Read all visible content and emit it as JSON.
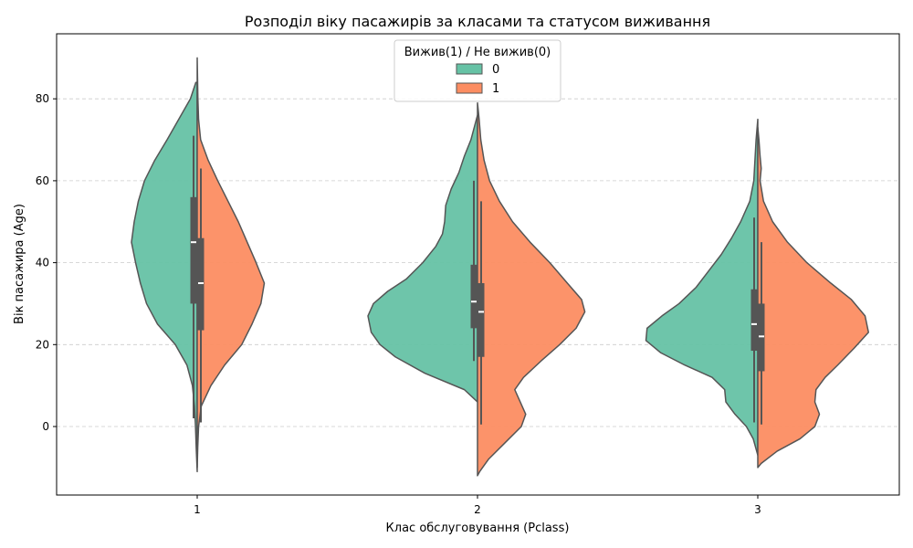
{
  "chart_data": {
    "type": "violin",
    "title": "Розподіл віку пасажирів за класами та статусом виживання",
    "xlabel": "Клас обслуговування (Pclass)",
    "ylabel": "Вік пасажира (Age)",
    "categories": [
      "1",
      "2",
      "3"
    ],
    "y_ticks": [
      "0",
      "20",
      "40",
      "60",
      "80"
    ],
    "ylim": [
      -16,
      96
    ],
    "grid": "horizontal dashed",
    "legend": {
      "title": "Вижив(1) / Не вижив(0)",
      "placement": "top-center",
      "entries": [
        "0",
        "1"
      ]
    },
    "colors": {
      "0": "#66c2a5",
      "1": "#fc8d62",
      "outline": "#555555",
      "box": "#555555"
    },
    "series": [
      {
        "name": "0",
        "side": "left",
        "categories": [
          {
            "profile": [
              [
                -11,
                0.0
              ],
              [
                -5,
                0.015
              ],
              [
                0,
                0.025
              ],
              [
                5,
                0.04
              ],
              [
                10,
                0.07
              ],
              [
                15,
                0.15
              ],
              [
                20,
                0.32
              ],
              [
                25,
                0.58
              ],
              [
                30,
                0.74
              ],
              [
                35,
                0.83
              ],
              [
                40,
                0.9
              ],
              [
                45,
                0.96
              ],
              [
                50,
                0.92
              ],
              [
                55,
                0.86
              ],
              [
                60,
                0.77
              ],
              [
                65,
                0.62
              ],
              [
                70,
                0.44
              ],
              [
                75,
                0.27
              ],
              [
                80,
                0.1
              ],
              [
                84,
                0.02
              ]
            ],
            "box": {
              "q1": 30,
              "median": 45,
              "q3": 56,
              "whisker_low": 2,
              "whisker_high": 71
            }
          },
          {
            "profile": [
              [
                6,
                0.0
              ],
              [
                9,
                0.12
              ],
              [
                13,
                0.48
              ],
              [
                17,
                0.75
              ],
              [
                20,
                0.89
              ],
              [
                23,
                0.97
              ],
              [
                27,
                1.0
              ],
              [
                30,
                0.95
              ],
              [
                33,
                0.82
              ],
              [
                36,
                0.65
              ],
              [
                40,
                0.5
              ],
              [
                44,
                0.38
              ],
              [
                47,
                0.32
              ],
              [
                50,
                0.3
              ],
              [
                54,
                0.29
              ],
              [
                58,
                0.24
              ],
              [
                62,
                0.17
              ],
              [
                66,
                0.12
              ],
              [
                70,
                0.06
              ],
              [
                74,
                0.02
              ],
              [
                76,
                0.0
              ]
            ],
            "box": {
              "q1": 24,
              "median": 30.5,
              "q3": 39.5,
              "whisker_low": 16,
              "whisker_high": 60
            }
          },
          {
            "profile": [
              [
                -7,
                0.0
              ],
              [
                -3,
                0.04
              ],
              [
                0,
                0.1
              ],
              [
                3,
                0.2
              ],
              [
                6,
                0.28
              ],
              [
                9,
                0.29
              ],
              [
                12,
                0.4
              ],
              [
                15,
                0.64
              ],
              [
                18,
                0.85
              ],
              [
                21,
                0.98
              ],
              [
                24,
                0.97
              ],
              [
                27,
                0.84
              ],
              [
                30,
                0.69
              ],
              [
                34,
                0.54
              ],
              [
                38,
                0.43
              ],
              [
                42,
                0.32
              ],
              [
                46,
                0.23
              ],
              [
                50,
                0.15
              ],
              [
                55,
                0.07
              ],
              [
                60,
                0.035
              ],
              [
                65,
                0.025
              ],
              [
                70,
                0.015
              ],
              [
                75,
                0.0
              ]
            ],
            "box": {
              "q1": 18.5,
              "median": 25,
              "q3": 33.5,
              "whisker_low": 1,
              "whisker_high": 51
            }
          }
        ]
      },
      {
        "name": "1",
        "side": "right",
        "categories": [
          {
            "profile": [
              [
                -10,
                0.0
              ],
              [
                -5,
                0.008
              ],
              [
                0,
                0.02
              ],
              [
                5,
                0.06
              ],
              [
                10,
                0.2
              ],
              [
                15,
                0.4
              ],
              [
                20,
                0.65
              ],
              [
                25,
                0.8
              ],
              [
                30,
                0.93
              ],
              [
                35,
                0.98
              ],
              [
                40,
                0.86
              ],
              [
                45,
                0.73
              ],
              [
                50,
                0.6
              ],
              [
                55,
                0.45
              ],
              [
                60,
                0.3
              ],
              [
                65,
                0.16
              ],
              [
                70,
                0.05
              ],
              [
                75,
                0.02
              ],
              [
                80,
                0.01
              ],
              [
                85,
                0.005
              ],
              [
                90,
                0.0
              ]
            ],
            "box": {
              "q1": 23.5,
              "median": 35,
              "q3": 46,
              "whisker_low": 1,
              "whisker_high": 63
            }
          },
          {
            "profile": [
              [
                -12,
                0.0
              ],
              [
                -11,
                0.02
              ],
              [
                -8,
                0.1
              ],
              [
                -4,
                0.25
              ],
              [
                0,
                0.4
              ],
              [
                3,
                0.44
              ],
              [
                6,
                0.39
              ],
              [
                9,
                0.34
              ],
              [
                12,
                0.42
              ],
              [
                16,
                0.58
              ],
              [
                20,
                0.75
              ],
              [
                24,
                0.9
              ],
              [
                28,
                0.98
              ],
              [
                31,
                0.95
              ],
              [
                35,
                0.82
              ],
              [
                40,
                0.66
              ],
              [
                45,
                0.48
              ],
              [
                50,
                0.32
              ],
              [
                55,
                0.2
              ],
              [
                60,
                0.11
              ],
              [
                65,
                0.06
              ],
              [
                70,
                0.03
              ],
              [
                75,
                0.015
              ],
              [
                79,
                0.0
              ]
            ],
            "box": {
              "q1": 17,
              "median": 28,
              "q3": 35,
              "whisker_low": 0.5,
              "whisker_high": 55
            }
          },
          {
            "profile": [
              [
                -10,
                0.0
              ],
              [
                -9,
                0.03
              ],
              [
                -6,
                0.17
              ],
              [
                -3,
                0.37
              ],
              [
                0,
                0.5
              ],
              [
                3,
                0.54
              ],
              [
                6,
                0.5
              ],
              [
                9,
                0.51
              ],
              [
                12,
                0.59
              ],
              [
                15,
                0.7
              ],
              [
                19,
                0.84
              ],
              [
                23,
                0.97
              ],
              [
                27,
                0.94
              ],
              [
                31,
                0.82
              ],
              [
                35,
                0.64
              ],
              [
                40,
                0.43
              ],
              [
                45,
                0.26
              ],
              [
                50,
                0.13
              ],
              [
                55,
                0.05
              ],
              [
                60,
                0.02
              ],
              [
                63,
                0.03
              ],
              [
                66,
                0.02
              ],
              [
                70,
                0.01
              ],
              [
                73,
                0.0
              ]
            ],
            "box": {
              "q1": 13.5,
              "median": 22,
              "q3": 30,
              "whisker_low": 0.5,
              "whisker_high": 45
            }
          }
        ]
      }
    ]
  }
}
